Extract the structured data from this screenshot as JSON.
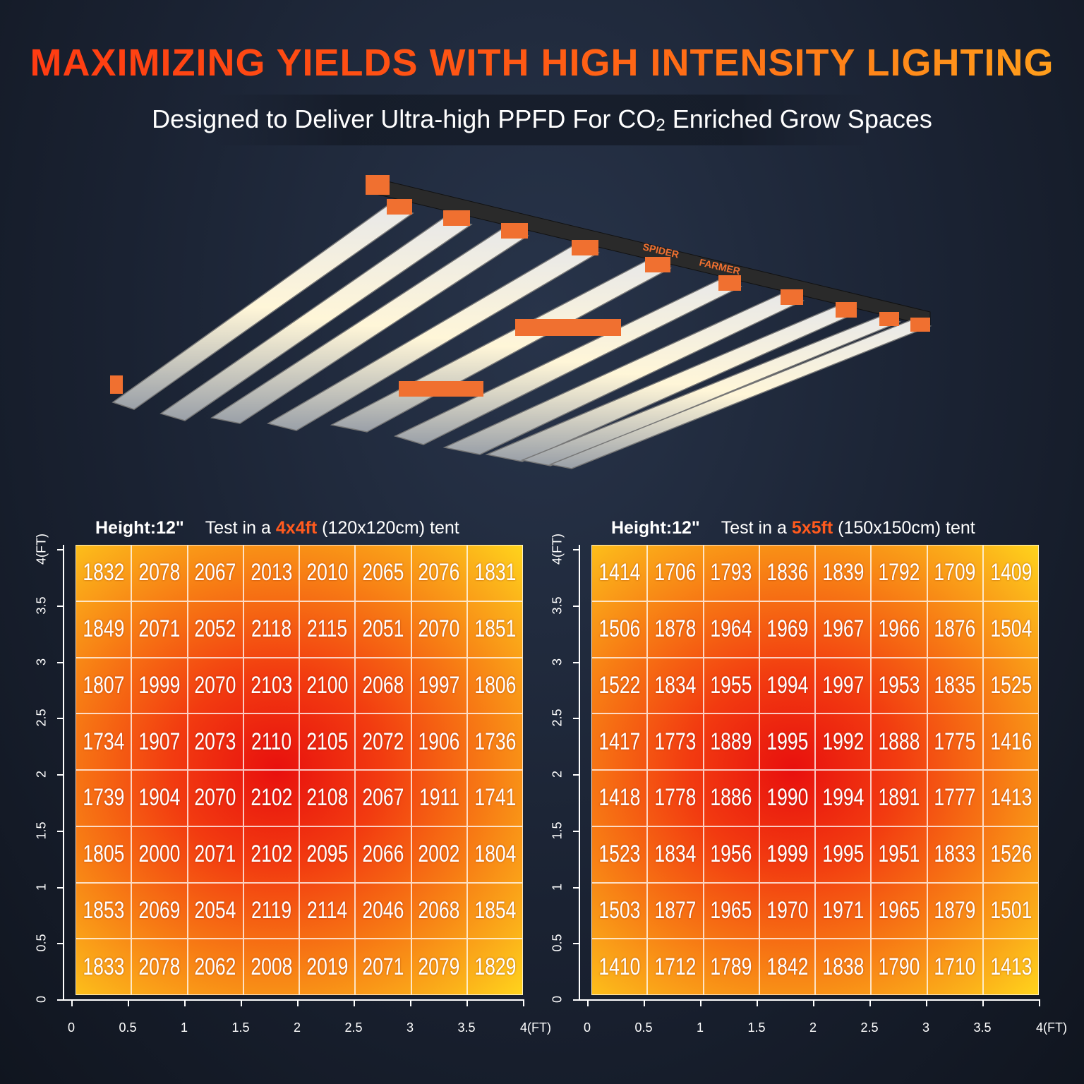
{
  "header": {
    "title": "MAXIMIZING YIELDS WITH HIGH INTENSITY LIGHTING",
    "subtitle_before": "Designed to Deliver Ultra-high PPFD For CO",
    "subtitle_sub": "2",
    "subtitle_after": "Enriched Grow Spaces"
  },
  "brand": {
    "line1": "SPIDER",
    "line2": "FARMER"
  },
  "maps": [
    {
      "height_label": "Height:12\"",
      "test_prefix": "Test in a",
      "size": "4x4ft",
      "size_suffix": "(120x120cm) tent",
      "y_ticks": [
        "0",
        "0.5",
        "1",
        "1.5",
        "2",
        "2.5",
        "3",
        "3.5",
        "4(FT)"
      ],
      "x_ticks": [
        "0",
        "0.5",
        "1",
        "1.5",
        "2",
        "2.5",
        "3",
        "3.5",
        "4(FT)"
      ],
      "rows": [
        [
          "1832",
          "2078",
          "2067",
          "2013",
          "2010",
          "2065",
          "2076",
          "1831"
        ],
        [
          "1849",
          "2071",
          "2052",
          "2118",
          "2115",
          "2051",
          "2070",
          "1851"
        ],
        [
          "1807",
          "1999",
          "2070",
          "2103",
          "2100",
          "2068",
          "1997",
          "1806"
        ],
        [
          "1734",
          "1907",
          "2073",
          "2110",
          "2105",
          "2072",
          "1906",
          "1736"
        ],
        [
          "1739",
          "1904",
          "2070",
          "2102",
          "2108",
          "2067",
          "1911",
          "1741"
        ],
        [
          "1805",
          "2000",
          "2071",
          "2102",
          "2095",
          "2066",
          "2002",
          "1804"
        ],
        [
          "1853",
          "2069",
          "2054",
          "2119",
          "2114",
          "2046",
          "2068",
          "1854"
        ],
        [
          "1833",
          "2078",
          "2062",
          "2008",
          "2019",
          "2071",
          "2079",
          "1829"
        ]
      ]
    },
    {
      "height_label": "Height:12\"",
      "test_prefix": "Test in a",
      "size": "5x5ft",
      "size_suffix": "(150x150cm) tent",
      "y_ticks": [
        "0",
        "0.5",
        "1",
        "1.5",
        "2",
        "2.5",
        "3",
        "3.5",
        "4(FT)"
      ],
      "x_ticks": [
        "0",
        "0.5",
        "1",
        "1.5",
        "2",
        "2.5",
        "3",
        "3.5",
        "4(FT)"
      ],
      "rows": [
        [
          "1414",
          "1706",
          "1793",
          "1836",
          "1839",
          "1792",
          "1709",
          "1409"
        ],
        [
          "1506",
          "1878",
          "1964",
          "1969",
          "1967",
          "1966",
          "1876",
          "1504"
        ],
        [
          "1522",
          "1834",
          "1955",
          "1994",
          "1997",
          "1953",
          "1835",
          "1525"
        ],
        [
          "1417",
          "1773",
          "1889",
          "1995",
          "1992",
          "1888",
          "1775",
          "1416"
        ],
        [
          "1418",
          "1778",
          "1886",
          "1990",
          "1994",
          "1891",
          "1777",
          "1413"
        ],
        [
          "1523",
          "1834",
          "1956",
          "1999",
          "1995",
          "1951",
          "1833",
          "1526"
        ],
        [
          "1503",
          "1877",
          "1965",
          "1970",
          "1971",
          "1965",
          "1879",
          "1501"
        ],
        [
          "1410",
          "1712",
          "1789",
          "1842",
          "1838",
          "1790",
          "1710",
          "1413"
        ]
      ]
    }
  ]
}
